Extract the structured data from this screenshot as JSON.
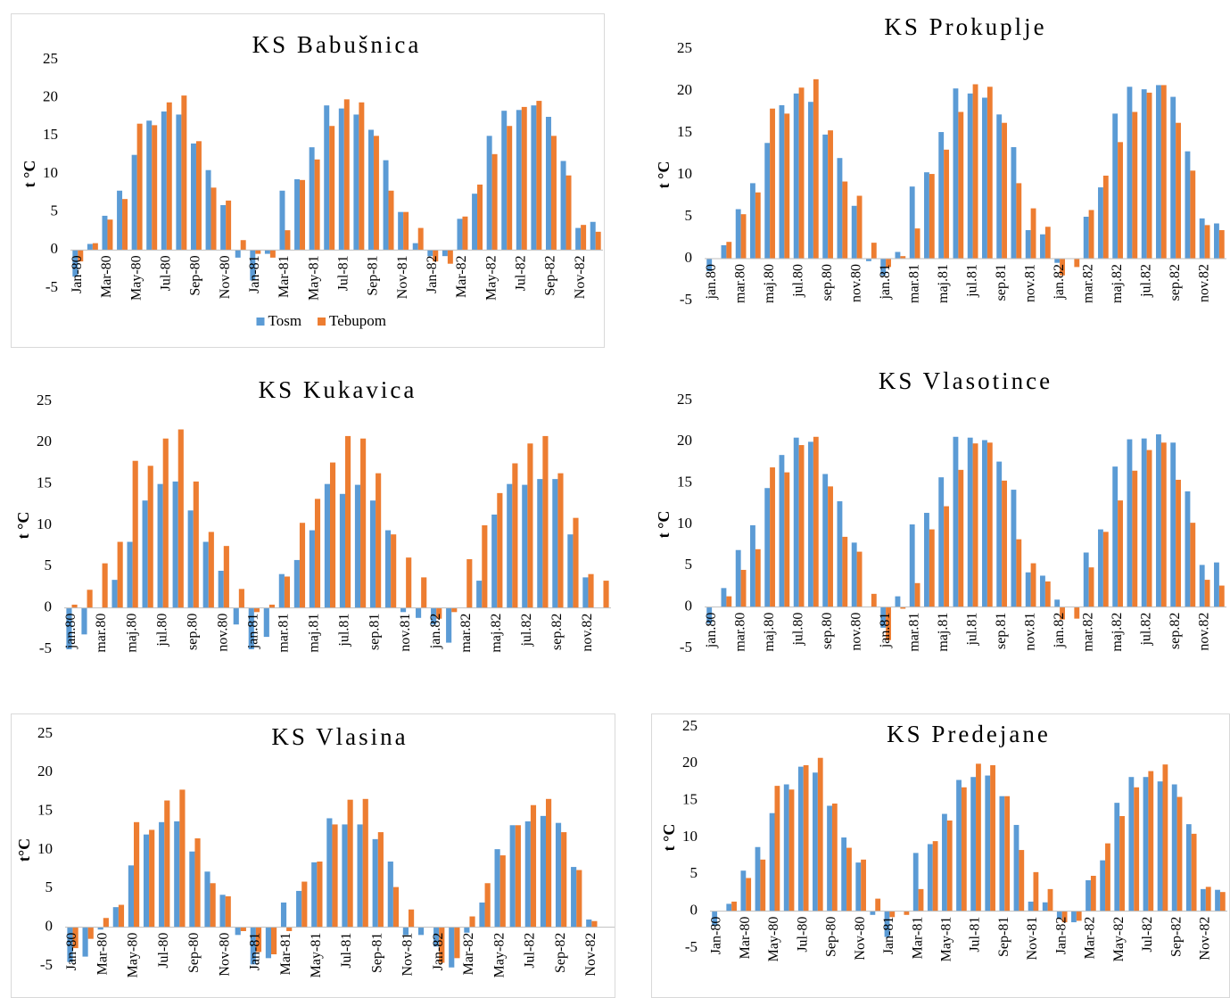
{
  "chart_data": [
    {
      "type": "bar",
      "title": "KS Babušnica",
      "y_label": "t °C",
      "legend": "bottom",
      "categories": [
        "Jan-80",
        null,
        "Mar-80",
        null,
        "May-80",
        null,
        "Jul-80",
        null,
        "Sep-80",
        null,
        "Nov-80",
        null,
        "Jan-81",
        null,
        "Mar-81",
        null,
        "May-81",
        null,
        "Jul-81",
        null,
        "Sep-81",
        null,
        "Nov-81",
        null,
        "Jan-82",
        null,
        "Mar-82",
        null,
        "May-82",
        null,
        "Jul-82",
        null,
        "Sep-82",
        null,
        "Nov-82",
        null
      ],
      "series": [
        {
          "name": "Tosm",
          "color": "#5b9bd5",
          "values": [
            -3.5,
            0.8,
            4.5,
            7.8,
            12.5,
            17,
            18.2,
            17.8,
            14,
            10.5,
            5.9,
            -1,
            -4,
            -0.5,
            7.8,
            9.3,
            13.5,
            19,
            18.6,
            17.8,
            15.8,
            11.8,
            5,
            0.9,
            -0.8,
            -0.8,
            4.1,
            7.4,
            15,
            18.3,
            18.4,
            19,
            17.5,
            11.7,
            2.9,
            3.7
          ]
        },
        {
          "name": "Tebupom",
          "color": "#ed7d31",
          "values": [
            -1.5,
            0.9,
            4,
            6.7,
            16.6,
            16.4,
            19.4,
            20.3,
            14.3,
            8.2,
            6.5,
            1.3,
            -0.5,
            -1,
            2.6,
            9.2,
            11.9,
            16.3,
            19.8,
            19.4,
            15,
            7.8,
            5,
            2.9,
            -1.5,
            -1.8,
            4.4,
            8.6,
            12.6,
            16.3,
            18.8,
            19.6,
            15,
            9.8,
            3.3,
            2.4
          ]
        }
      ],
      "ylim": [
        -5,
        25
      ],
      "yticks": [
        -5,
        0,
        5,
        10,
        15,
        20,
        25
      ]
    },
    {
      "type": "bar",
      "title": "KS Prokuplje",
      "y_label": "t °C",
      "categories": [
        "jan.80",
        null,
        "mar.80",
        null,
        "maj.80",
        null,
        "jul.80",
        null,
        "sep.80",
        null,
        "nov.80",
        null,
        "jan.81",
        null,
        "mar.81",
        null,
        "maj.81",
        null,
        "jul.81",
        null,
        "sep.81",
        null,
        "nov.81",
        null,
        "jan.82",
        null,
        "mar.82",
        null,
        "maj.82",
        null,
        "jul.82",
        null,
        "sep.82",
        null,
        "nov.82",
        null
      ],
      "series": [
        {
          "color": "#5b9bd5",
          "values": [
            -1.5,
            1.6,
            5.9,
            9,
            13.8,
            18.3,
            19.7,
            18.7,
            14.8,
            12,
            6.3,
            -0.3,
            -2,
            0.8,
            8.6,
            10.3,
            15.1,
            20.3,
            19.7,
            19.2,
            17.2,
            13.3,
            3.4,
            2.9,
            -0.5,
            0,
            5,
            8.5,
            17.3,
            20.5,
            20.2,
            20.7,
            19.3,
            12.8,
            4.8,
            4.2
          ]
        },
        {
          "color": "#ed7d31",
          "values": [
            0,
            2,
            5.3,
            7.9,
            17.9,
            17.3,
            20.4,
            21.4,
            15.3,
            9.2,
            7.5,
            1.9,
            -1,
            0.3,
            3.6,
            10.1,
            13,
            17.5,
            20.8,
            20.5,
            16.2,
            9,
            6,
            3.8,
            -2,
            -1,
            5.8,
            9.9,
            13.9,
            17.5,
            19.8,
            20.7,
            16.2,
            10.5,
            4,
            3.4
          ]
        }
      ],
      "ylim": [
        -5,
        25
      ],
      "yticks": [
        -5,
        0,
        5,
        10,
        15,
        20,
        25
      ]
    },
    {
      "type": "bar",
      "title": "KS Kukavica",
      "y_label": "t °C",
      "categories": [
        "jan.80",
        null,
        "mar.80",
        null,
        "maj.80",
        null,
        "jul.80",
        null,
        "sep.80",
        null,
        "nov.80",
        null,
        "jan.81",
        null,
        "mar.81",
        null,
        "maj.81",
        null,
        "jul.81",
        null,
        "sep.81",
        null,
        "nov.81",
        null,
        "jan.82",
        null,
        "mar.82",
        null,
        "maj.82",
        null,
        "jul.82",
        null,
        "sep.82",
        null,
        "nov.82",
        null
      ],
      "series": [
        {
          "color": "#5b9bd5",
          "values": [
            -5,
            -3.2,
            0,
            3.4,
            8,
            13,
            15,
            15.3,
            11.8,
            8,
            4.5,
            -2,
            -5,
            -3.5,
            4.1,
            5.8,
            9.4,
            15,
            13.8,
            14.9,
            13,
            9.4,
            -0.5,
            -1.2,
            -2,
            -4.2,
            0,
            3.3,
            11.3,
            15,
            14.9,
            15.6,
            15.6,
            8.9,
            3.7,
            0
          ]
        },
        {
          "color": "#ed7d31",
          "values": [
            0.4,
            2.2,
            5.4,
            8,
            17.8,
            17.2,
            20.5,
            21.6,
            15.3,
            9.2,
            7.5,
            2.3,
            -0.5,
            0.4,
            3.8,
            10.3,
            13.2,
            17.6,
            20.8,
            20.5,
            16.3,
            8.9,
            6.1,
            3.7,
            -1.3,
            -0.5,
            5.9,
            10,
            13.9,
            17.5,
            19.9,
            20.8,
            16.3,
            10.9,
            4.1,
            3.3
          ]
        }
      ],
      "ylim": [
        -5,
        25
      ],
      "yticks": [
        -5,
        0,
        5,
        10,
        15,
        20,
        25
      ]
    },
    {
      "type": "bar",
      "title": "KS Vlasotince",
      "y_label": "t °C",
      "categories": [
        "jan.80",
        null,
        "mar.80",
        null,
        "maj.80",
        null,
        "jul.80",
        null,
        "sep.80",
        null,
        "nov.80",
        null,
        "jan.81",
        null,
        "mar.81",
        null,
        "maj.81",
        null,
        "jul.81",
        null,
        "sep.81",
        null,
        "nov.81",
        null,
        "jan.82",
        null,
        "mar.82",
        null,
        "maj.82",
        null,
        "jul.82",
        null,
        "sep.82",
        null,
        "nov.82",
        null
      ],
      "series": [
        {
          "color": "#5b9bd5",
          "values": [
            -2,
            2.3,
            6.9,
            9.9,
            14.4,
            18.4,
            20.5,
            20,
            16.1,
            12.8,
            7.8,
            0,
            -2.5,
            1.3,
            10,
            11.4,
            15.7,
            20.6,
            20.5,
            20.2,
            17.6,
            14.2,
            4.2,
            3.8,
            0.9,
            0,
            6.6,
            9.4,
            17,
            20.3,
            20.4,
            20.9,
            19.9,
            14,
            5.1,
            5.4
          ]
        },
        {
          "color": "#ed7d31",
          "values": [
            0,
            1.3,
            4.5,
            7,
            16.9,
            16.3,
            19.6,
            20.6,
            14.6,
            8.5,
            6.7,
            1.6,
            -4,
            -0.2,
            2.9,
            9.4,
            12.2,
            16.6,
            19.8,
            19.9,
            15.3,
            8.2,
            5.3,
            3.1,
            -1.5,
            -1.4,
            4.8,
            9.1,
            12.9,
            16.5,
            19,
            19.9,
            15.4,
            10.2,
            3.3,
            2.6
          ]
        }
      ],
      "ylim": [
        -5,
        25
      ],
      "yticks": [
        -5,
        0,
        5,
        10,
        15,
        20,
        25
      ]
    },
    {
      "type": "bar",
      "title": "KS Vlasina",
      "y_label": "t°C",
      "categories": [
        "Jan-80",
        null,
        "Mar-80",
        null,
        "May-80",
        null,
        "Jul-80",
        null,
        "Sep-80",
        null,
        "Nov-80",
        null,
        "Jan-81",
        null,
        "Mar-81",
        null,
        "May-81",
        null,
        "Jul-81",
        null,
        "Sep-81",
        null,
        "Nov-81",
        null,
        "Jan-82",
        null,
        "Mar-82",
        null,
        "May-82",
        null,
        "Jul-82",
        null,
        "Sep-82",
        null,
        "Nov-82",
        null
      ],
      "series": [
        {
          "color": "#5b9bd5",
          "values": [
            -4.5,
            -3.8,
            -0.3,
            2.6,
            8,
            12,
            13.6,
            13.7,
            9.8,
            7.2,
            4.2,
            -1,
            -4.8,
            -4,
            3.2,
            4.7,
            8.4,
            14.1,
            13.3,
            13.3,
            11.4,
            8.5,
            -1,
            -1,
            -2.5,
            -5.2,
            -0.7,
            3.2,
            10.1,
            13.2,
            13.7,
            14.4,
            13.5,
            7.8,
            1,
            0
          ]
        },
        {
          "color": "#ed7d31",
          "values": [
            -2.7,
            -1.5,
            1.2,
            2.9,
            13.6,
            12.6,
            16.4,
            17.8,
            11.5,
            5.7,
            4,
            -0.5,
            -3.2,
            -3.5,
            -0.5,
            5.9,
            8.5,
            13.3,
            16.5,
            16.6,
            12.3,
            5.2,
            2.3,
            0,
            -4.6,
            -4,
            1.4,
            5.7,
            9.3,
            13.2,
            15.8,
            16.6,
            12.3,
            7.4,
            0.8,
            0
          ]
        }
      ],
      "ylim": [
        -5,
        25
      ],
      "yticks": [
        -5,
        0,
        5,
        10,
        15,
        20,
        25
      ]
    },
    {
      "type": "bar",
      "title": "KS Predejane",
      "y_label": "t °C",
      "categories": [
        "Jan-80",
        null,
        "Mar-80",
        null,
        "May-80",
        null,
        "Jul-80",
        null,
        "Sep-80",
        null,
        "Nov-80",
        null,
        "Jan-81",
        null,
        "Mar-81",
        null,
        "May-81",
        null,
        "Jul-81",
        null,
        "Sep-81",
        null,
        "Nov-81",
        null,
        "Jan-82",
        null,
        "Mar-82",
        null,
        "May-82",
        null,
        "Jul-82",
        null,
        "Sep-82",
        null,
        "Nov-82",
        null
      ],
      "series": [
        {
          "color": "#5b9bd5",
          "values": [
            -2,
            1,
            5.5,
            8.7,
            13.3,
            17.2,
            19.6,
            18.8,
            14.3,
            10,
            6.6,
            -0.5,
            -3.5,
            0,
            7.9,
            9.1,
            13.2,
            17.8,
            18.2,
            18.4,
            15.6,
            11.7,
            1.3,
            1.2,
            -1,
            -1.5,
            4.2,
            6.9,
            14.7,
            18.2,
            18.2,
            17.6,
            17.2,
            11.8,
            3,
            2.9
          ]
        },
        {
          "color": "#ed7d31",
          "values": [
            0,
            1.3,
            4.5,
            7,
            17,
            16.5,
            19.8,
            20.8,
            14.6,
            8.6,
            7,
            1.7,
            -0.8,
            -0.5,
            3,
            9.5,
            12.3,
            16.8,
            20,
            19.8,
            15.6,
            8.3,
            5.3,
            3,
            -1.5,
            -1.3,
            4.8,
            9.2,
            12.9,
            16.8,
            19,
            19.9,
            15.5,
            10.5,
            3.3,
            2.6
          ]
        }
      ],
      "ylim": [
        -5,
        25
      ],
      "yticks": [
        -5,
        0,
        5,
        10,
        15,
        20,
        25
      ]
    }
  ]
}
